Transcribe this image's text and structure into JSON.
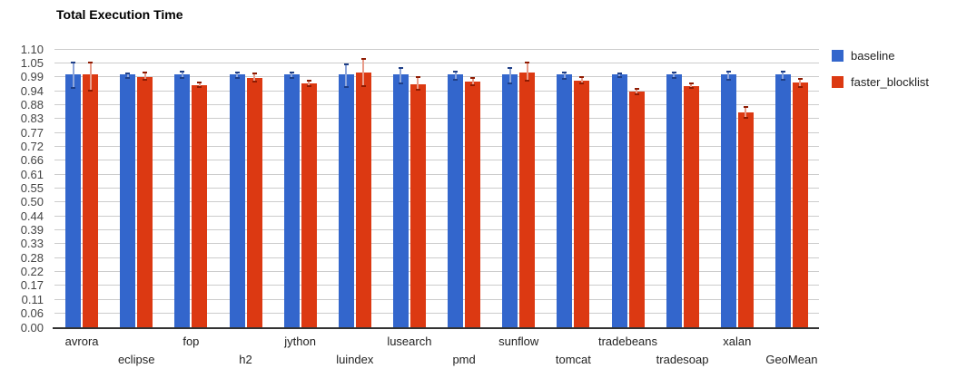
{
  "chart_data": {
    "type": "bar",
    "title": "Total Execution Time",
    "xlabel": "",
    "ylabel": "",
    "ylim": [
      0,
      1.1
    ],
    "grid": true,
    "legend_position": "right",
    "categories": [
      "avrora",
      "eclipse",
      "fop",
      "h2",
      "jython",
      "luindex",
      "lusearch",
      "pmd",
      "sunflow",
      "tomcat",
      "tradebeans",
      "tradesoap",
      "xalan",
      "GeoMean"
    ],
    "series": [
      {
        "name": "baseline",
        "color": "#3366CC",
        "interval_line_color": "#8FA6DA",
        "interval_cap_color": "#1F3F87",
        "values": [
          1.0,
          1.0,
          1.0,
          1.0,
          1.0,
          1.0,
          1.0,
          1.0,
          1.0,
          1.0,
          1.0,
          1.0,
          1.0,
          1.0
        ],
        "intervals": [
          [
            0.945,
            1.045
          ],
          [
            0.985,
            1.005
          ],
          [
            0.985,
            1.01
          ],
          [
            0.984,
            1.008
          ],
          [
            0.984,
            1.006
          ],
          [
            0.95,
            1.04
          ],
          [
            0.965,
            1.025
          ],
          [
            0.98,
            1.012
          ],
          [
            0.965,
            1.025
          ],
          [
            0.983,
            1.007
          ],
          [
            0.99,
            1.002
          ],
          [
            0.987,
            1.006
          ],
          [
            0.98,
            1.01
          ],
          [
            0.98,
            1.01
          ]
        ]
      },
      {
        "name": "faster_blocklist",
        "color": "#DC3912",
        "interval_line_color": "#E89D8B",
        "interval_cap_color": "#8E1B02",
        "values": [
          1.0,
          0.99,
          0.957,
          0.987,
          0.963,
          1.008,
          0.962,
          0.971,
          1.006,
          0.976,
          0.93,
          0.955,
          0.848,
          0.969
        ],
        "intervals": [
          [
            0.935,
            1.046
          ],
          [
            0.977,
            1.007
          ],
          [
            0.95,
            0.968
          ],
          [
            0.971,
            1.004
          ],
          [
            0.954,
            0.973
          ],
          [
            0.952,
            1.062
          ],
          [
            0.94,
            0.988
          ],
          [
            0.957,
            0.987
          ],
          [
            0.974,
            1.048
          ],
          [
            0.964,
            0.988
          ],
          [
            0.92,
            0.944
          ],
          [
            0.945,
            0.965
          ],
          [
            0.828,
            0.872
          ],
          [
            0.951,
            0.983
          ]
        ]
      }
    ],
    "y_ticks": {
      "values": [
        0,
        0.055,
        0.11,
        0.165,
        0.22,
        0.275,
        0.33,
        0.385,
        0.44,
        0.495,
        0.55,
        0.605,
        0.66,
        0.715,
        0.77,
        0.825,
        0.88,
        0.935,
        0.99,
        1.045,
        1.1
      ],
      "labels": [
        "0.00",
        "0.06",
        "0.11",
        "0.17",
        "0.22",
        "0.28",
        "0.33",
        "0.39",
        "0.44",
        "0.50",
        "0.55",
        "0.61",
        "0.66",
        "0.72",
        "0.77",
        "0.83",
        "0.88",
        "0.94",
        "0.99",
        "1.05",
        "1.10"
      ]
    },
    "style": {
      "gridline_color": "#CCCCCC",
      "axis_line_color": "#333333",
      "y_tick_color": "#444444",
      "x_tick_color": "#222222"
    }
  }
}
